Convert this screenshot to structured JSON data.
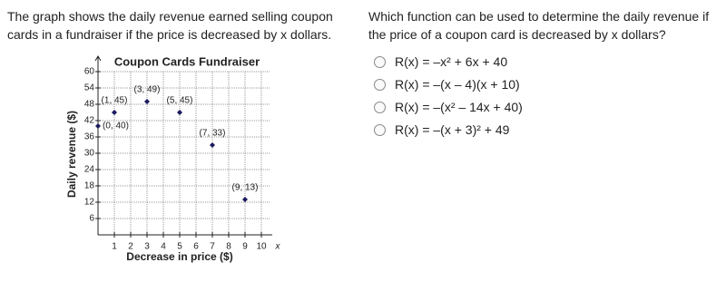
{
  "left_text": "The graph shows the daily revenue earned selling coupon cards in a fundraiser if the price is decreased by x dollars.",
  "question": "Which function can be used to determine the daily revenue if the price of a coupon card is decreased by x dollars?",
  "options": [
    "R(x) = –x² + 6x + 40",
    "R(x) = –(x – 4)(x + 10)",
    "R(x) = –(x² – 14x + 40)",
    "R(x) = –(x + 3)² + 49"
  ],
  "chart_data": {
    "type": "scatter",
    "title": "Coupon Cards Fundraiser",
    "x_label": "Decrease in price ($)",
    "y_label": "Daily revenue ($)",
    "x_axis_end_label": "x",
    "x": [
      0,
      1,
      3,
      5,
      7,
      9
    ],
    "values": [
      40,
      45,
      49,
      45,
      33,
      13
    ],
    "value_labels": [
      "(0, 40)",
      "(1, 45)",
      "(3, 49)",
      "(5, 45)",
      "(7, 33)",
      "(9, 13)"
    ],
    "color": "#1a1a5e",
    "xlim": [
      0,
      11
    ],
    "ylim": [
      0,
      62
    ],
    "xticks": [
      1,
      2,
      3,
      4,
      5,
      6,
      7,
      8,
      9,
      10
    ],
    "yticks": [
      6,
      12,
      18,
      24,
      30,
      36,
      42,
      48,
      54,
      60
    ],
    "grid": true
  }
}
